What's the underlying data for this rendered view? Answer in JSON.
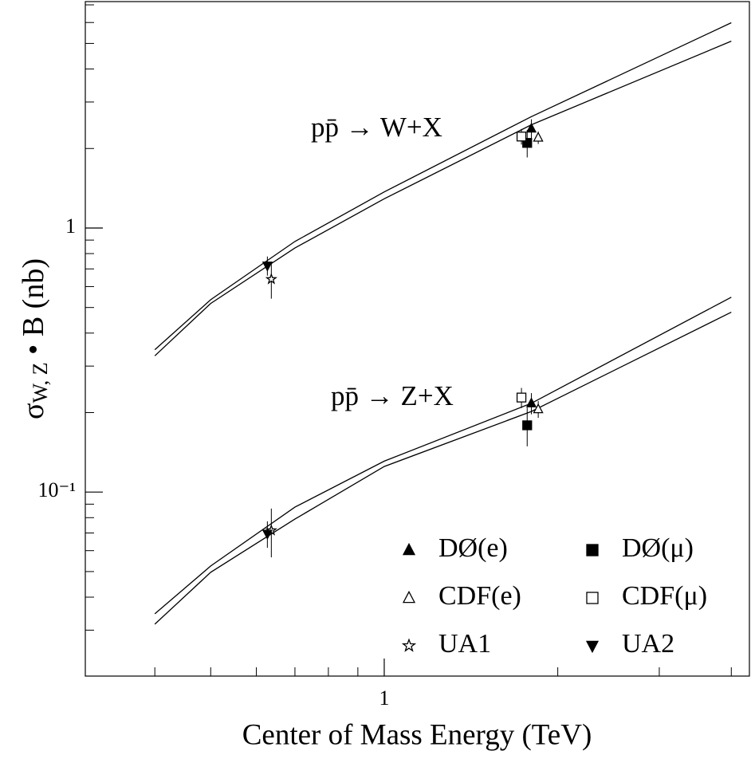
{
  "chart_data": {
    "type": "scatter",
    "x_label": "Center of Mass Energy (TeV)",
    "y_label": {
      "symbol": "σ",
      "sub": "W, Z",
      "rest": " • B (nb)"
    },
    "log_x": true,
    "log_y": true,
    "xlim": [
      0.303,
      4.3
    ],
    "ylim": [
      0.0201,
      7.2
    ],
    "xticks": [
      1
    ],
    "xminor": [
      0.4,
      0.5,
      0.6,
      0.7,
      0.8,
      0.9,
      2,
      3,
      4
    ],
    "yticks": [
      1,
      {
        "value": 0.1,
        "label": "10⁻¹"
      }
    ],
    "yminor": [
      0.03,
      0.04,
      0.05,
      0.06,
      0.07,
      0.08,
      0.09,
      0.2,
      0.3,
      0.4,
      0.5,
      0.6,
      0.7,
      0.8,
      0.9,
      2,
      3,
      4,
      5,
      6,
      7
    ],
    "curves": [
      {
        "label": "pp̄ → W+X",
        "x": [
          0.4,
          0.5,
          0.7,
          1,
          1.8,
          4
        ],
        "upper": [
          0.346,
          0.535,
          0.889,
          1.37,
          2.64,
          5.99
        ],
        "lower": [
          0.328,
          0.518,
          0.84,
          1.29,
          2.46,
          5.1
        ]
      },
      {
        "label": "pp̄ → Z+X",
        "x": [
          0.4,
          0.5,
          0.7,
          1,
          1.8,
          4
        ],
        "upper": [
          0.0346,
          0.0525,
          0.0877,
          0.131,
          0.217,
          0.547
        ],
        "lower": [
          0.0316,
          0.0497,
          0.079,
          0.125,
          0.202,
          0.48
        ]
      }
    ],
    "series": [
      {
        "name": "DØ(e)",
        "marker": "triangle",
        "filled": true,
        "x": [
          1.8,
          1.8
        ],
        "values": [
          2.38,
          0.217
        ],
        "err": [
          0.2,
          0.02
        ]
      },
      {
        "name": "DØ(μ)",
        "marker": "square",
        "filled": true,
        "x": [
          1.77,
          1.77
        ],
        "values": [
          2.1,
          0.179
        ],
        "err": [
          0.25,
          0.03
        ]
      },
      {
        "name": "CDF(e)",
        "marker": "triangle",
        "filled": false,
        "x": [
          1.85,
          1.85
        ],
        "values": [
          2.2,
          0.206
        ],
        "err": [
          0.12,
          0.015
        ]
      },
      {
        "name": "CDF(μ)",
        "marker": "square",
        "filled": false,
        "x": [
          1.73,
          1.73
        ],
        "values": [
          2.22,
          0.228
        ],
        "err": [
          0.15,
          0.02
        ]
      },
      {
        "name": "UA1",
        "marker": "star",
        "filled": false,
        "x": [
          0.637,
          0.637
        ],
        "values": [
          0.64,
          0.0716
        ],
        "err": [
          0.1,
          0.015
        ]
      },
      {
        "name": "UA2",
        "marker": "triangle-down",
        "filled": true,
        "x": [
          0.627,
          0.627
        ],
        "values": [
          0.72,
          0.0695
        ],
        "err": [
          0.06,
          0.008
        ]
      }
    ]
  }
}
